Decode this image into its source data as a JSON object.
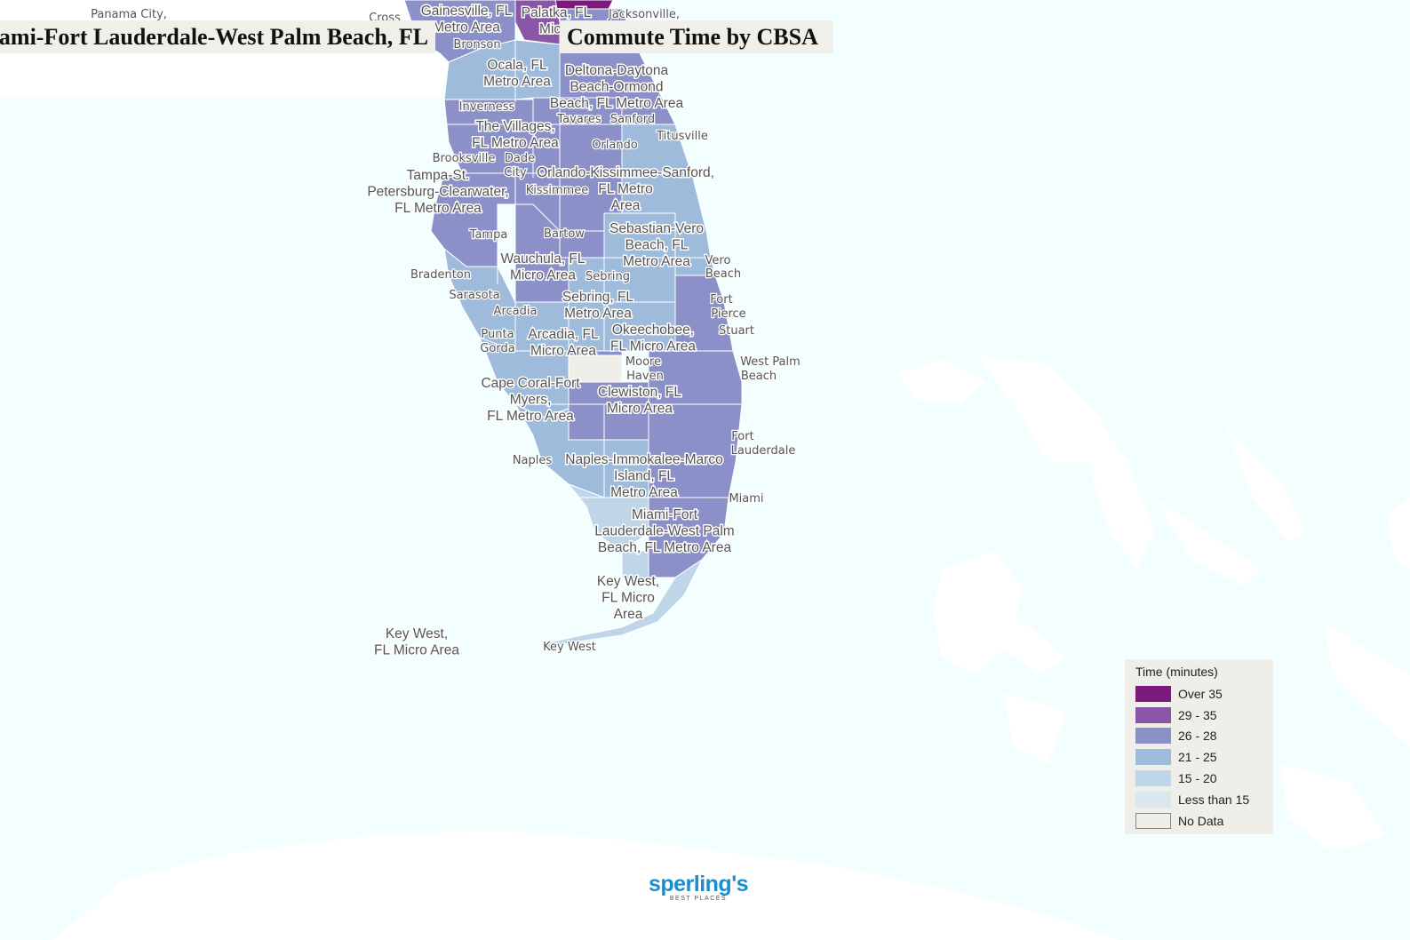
{
  "title": {
    "left": "Miami-Fort Lauderdale-West Palm Beach, FL",
    "right": "Commute Time by CBSA"
  },
  "legend": {
    "title": "Time (minutes)",
    "items": [
      {
        "label": "Over 35",
        "color": "#7d1a7e"
      },
      {
        "label": "29 - 35",
        "color": "#8a57a8"
      },
      {
        "label": "26 - 28",
        "color": "#8c90c8"
      },
      {
        "label": "21 - 25",
        "color": "#9ebbdb"
      },
      {
        "label": "15 - 20",
        "color": "#bfd5e8"
      },
      {
        "label": "Less than 15",
        "color": "#dbe7ee"
      },
      {
        "label": "No Data",
        "color": "#f0eee8"
      }
    ]
  },
  "colors": {
    "water": "#f3fefe",
    "land": "#ffffff",
    "no_data": "#f0eee8",
    "c2628": "#8c90c8",
    "c2125": "#9ebbdb",
    "c1520": "#bfd5e8",
    "c2935": "#8a57a8",
    "c35": "#7d1a7e"
  },
  "logo": {
    "main": "sperling's",
    "sub": "BEST PLACES"
  },
  "area_labels": [
    [
      "Gainesville, FL",
      "Metro Area"
    ],
    [
      "Palatka, FL",
      "Micro"
    ],
    [
      "Ocala, FL",
      "Metro Area"
    ],
    [
      "Deltona-Daytona",
      "Beach-Ormond",
      "Beach, FL Metro Area"
    ],
    [
      "The Villages,",
      "FL Metro Area"
    ],
    [
      "Tampa-St.",
      "Petersburg-Clearwater,",
      "FL Metro Area"
    ],
    [
      "Orlando-Kissimmee-Sanford,",
      "FL Metro",
      "Area"
    ],
    [
      "Sebastian-Vero",
      "Beach, FL",
      "Metro Area"
    ],
    [
      "Wauchula, FL",
      "Micro Area"
    ],
    [
      "Sebring, FL",
      "Metro Area"
    ],
    [
      "Arcadia, FL",
      "Micro Area"
    ],
    [
      "Okeechobee,",
      "FL Micro Area"
    ],
    [
      "Cape Coral-Fort",
      "Myers,",
      "FL Metro Area"
    ],
    [
      "Clewiston, FL",
      "Micro Area"
    ],
    [
      "Naples-Immokalee-Marco",
      "Island, FL",
      "Metro Area"
    ],
    [
      "Miami-Fort",
      "Lauderdale-West Palm",
      "Beach, FL Metro Area"
    ],
    [
      "Key West,",
      "FL Micro",
      "Area"
    ],
    [
      "Key West,",
      "FL Micro Area"
    ]
  ],
  "cities": [
    "Panama City,",
    "Cross",
    "Bronson",
    "Jacksonville,",
    "Inverness",
    "Tavares",
    "Sanford",
    "Titusville",
    "Orlando",
    "Brooksville",
    "Dade",
    "City",
    "Kissimmee",
    "Tampa",
    "Bartow",
    "Bradenton",
    "Sebring",
    "Vero",
    "Beach",
    "Sarasota",
    "Fort",
    "Pierce",
    "Arcadia",
    "Stuart",
    "Punta",
    "Gorda",
    "Moore",
    "Haven",
    "West Palm",
    "Beach",
    "Fort",
    "Lauderdale",
    "Naples",
    "Miami",
    "Key West"
  ]
}
